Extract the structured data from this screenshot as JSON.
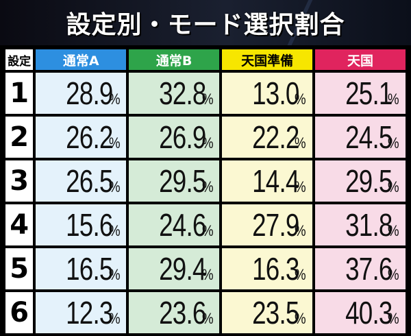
{
  "title": "設定別・モード選択割合",
  "header": {
    "settei": "設定",
    "cols": [
      "通常A",
      "通常B",
      "天国準備",
      "天国"
    ]
  },
  "unit": "%",
  "rows": [
    {
      "label": "1",
      "values": [
        "28.9",
        "32.8",
        "13.0",
        "25.1"
      ]
    },
    {
      "label": "2",
      "values": [
        "26.2",
        "26.9",
        "22.2",
        "24.5"
      ]
    },
    {
      "label": "3",
      "values": [
        "26.5",
        "29.5",
        "14.4",
        "29.5"
      ]
    },
    {
      "label": "4",
      "values": [
        "15.6",
        "24.6",
        "27.9",
        "31.8"
      ]
    },
    {
      "label": "5",
      "values": [
        "16.5",
        "29.4",
        "16.3",
        "37.6"
      ]
    },
    {
      "label": "6",
      "values": [
        "12.3",
        "23.6",
        "23.5",
        "40.3"
      ]
    }
  ],
  "colors": {
    "normal_a": "#2d8fe0",
    "normal_b": "#2ea44a",
    "heaven_prep": "#f7e600",
    "heaven": "#e0245e"
  }
}
